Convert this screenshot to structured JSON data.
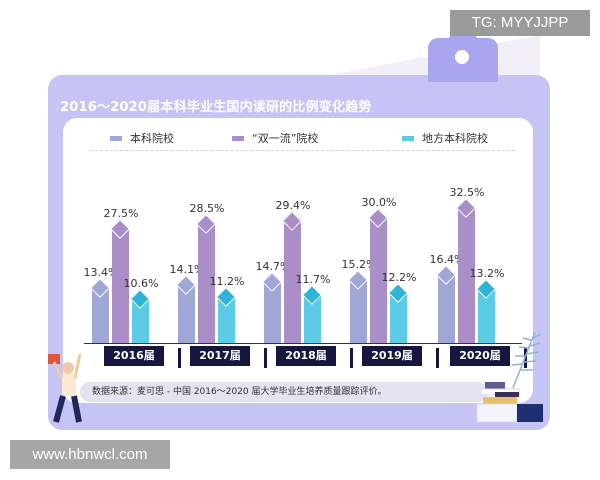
{
  "watermarks": {
    "top": "TG: MYYJJPP",
    "bottom": "www.hbnwcl.com"
  },
  "colors": {
    "series1": "#9ea7d6",
    "series2": "#a98ec8",
    "series3": "#5ccbe6",
    "diamond3": "#2eb4d8",
    "frame": "#c6c4f4",
    "year_label_bg": "#15173f"
  },
  "chart_data": {
    "type": "bar",
    "title": "2016～2020届本科毕业生国内读研的比例变化趋势",
    "categories": [
      "2016届",
      "2017届",
      "2018届",
      "2019届",
      "2020届"
    ],
    "series": [
      {
        "name": "本科院校",
        "values": [
          13.4,
          14.1,
          14.7,
          15.2,
          16.4
        ]
      },
      {
        "name": "“双一流”院校",
        "values": [
          27.5,
          28.5,
          29.4,
          30.0,
          32.5
        ]
      },
      {
        "name": "地方本科院校",
        "values": [
          10.6,
          11.2,
          11.7,
          12.2,
          13.2
        ]
      }
    ],
    "value_labels": [
      [
        "13.4%",
        "27.5%",
        "10.6%"
      ],
      [
        "14.1%",
        "28.5%",
        "11.2%"
      ],
      [
        "14.7%",
        "29.4%",
        "11.7%"
      ],
      [
        "15.2%",
        "30.0%",
        "12.2%"
      ],
      [
        "16.4%",
        "32.5%",
        "13.2%"
      ]
    ],
    "unit": "%",
    "xlabel": "",
    "ylabel": "",
    "ylim": [
      0,
      35
    ],
    "grid": false,
    "legend_position": "top",
    "source": "数据来源：麦可思 - 中国 2016～2020 届大学毕业生培养质量跟踪评价。"
  },
  "legend": [
    "本科院校",
    "“双一流”院校",
    "地方本科院校"
  ]
}
